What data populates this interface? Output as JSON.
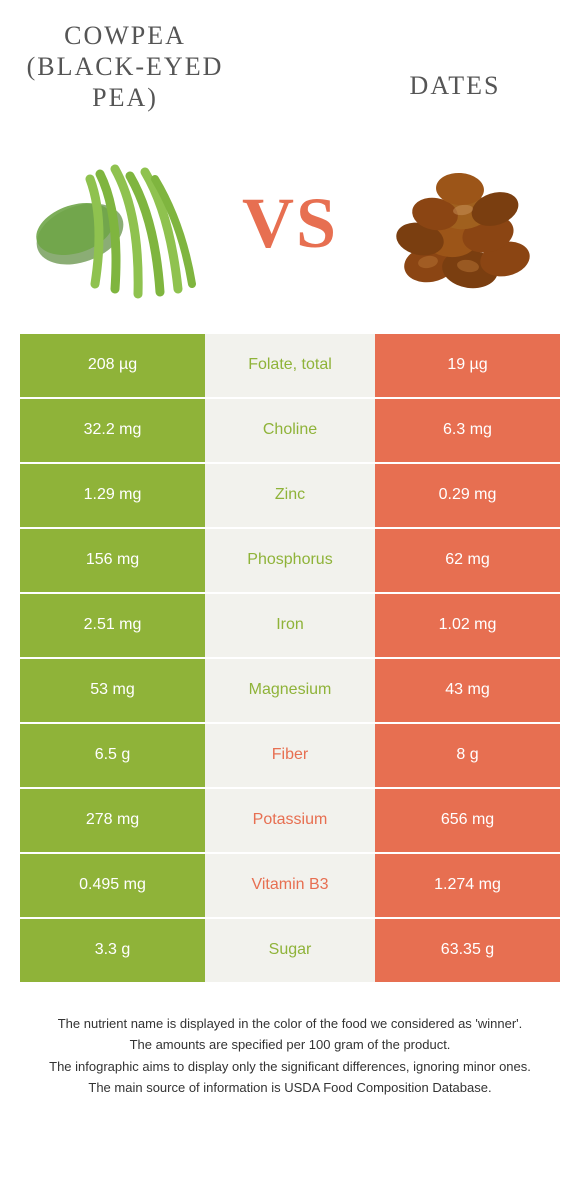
{
  "colors": {
    "left_food": "#8fb339",
    "right_food": "#e76f51",
    "mid_bg": "#f2f2ed",
    "title_text": "#555555",
    "cell_text": "#ffffff",
    "note_text": "#333333"
  },
  "typography": {
    "title_font": "Georgia, serif",
    "title_size_pt": 20,
    "title_letter_spacing": 2,
    "vs_size_pt": 54,
    "cell_size_pt": 12,
    "note_size_pt": 10
  },
  "left_food": {
    "title_line1": "Cowpea",
    "title_line2": "(Black-eyed",
    "title_line3": "pea)",
    "illustration": "green-beans"
  },
  "right_food": {
    "title": "Dates",
    "illustration": "dates-pile"
  },
  "vs_label": "VS",
  "rows": [
    {
      "left": "208 µg",
      "mid": "Folate, total",
      "right": "19 µg",
      "winner": "left"
    },
    {
      "left": "32.2 mg",
      "mid": "Choline",
      "right": "6.3 mg",
      "winner": "left"
    },
    {
      "left": "1.29 mg",
      "mid": "Zinc",
      "right": "0.29 mg",
      "winner": "left"
    },
    {
      "left": "156 mg",
      "mid": "Phosphorus",
      "right": "62 mg",
      "winner": "left"
    },
    {
      "left": "2.51 mg",
      "mid": "Iron",
      "right": "1.02 mg",
      "winner": "left"
    },
    {
      "left": "53 mg",
      "mid": "Magnesium",
      "right": "43 mg",
      "winner": "left"
    },
    {
      "left": "6.5 g",
      "mid": "Fiber",
      "right": "8 g",
      "winner": "right"
    },
    {
      "left": "278 mg",
      "mid": "Potassium",
      "right": "656 mg",
      "winner": "right"
    },
    {
      "left": "0.495 mg",
      "mid": "Vitamin B3",
      "right": "1.274 mg",
      "winner": "right"
    },
    {
      "left": "3.3 g",
      "mid": "Sugar",
      "right": "63.35 g",
      "winner": "left"
    }
  ],
  "notes": [
    "The nutrient name is displayed in the color of the food we considered as 'winner'.",
    "The amounts are specified per 100 gram of the product.",
    "The infographic aims to display only the significant differences, ignoring minor ones.",
    "The main source of information is USDA Food Composition Database."
  ]
}
